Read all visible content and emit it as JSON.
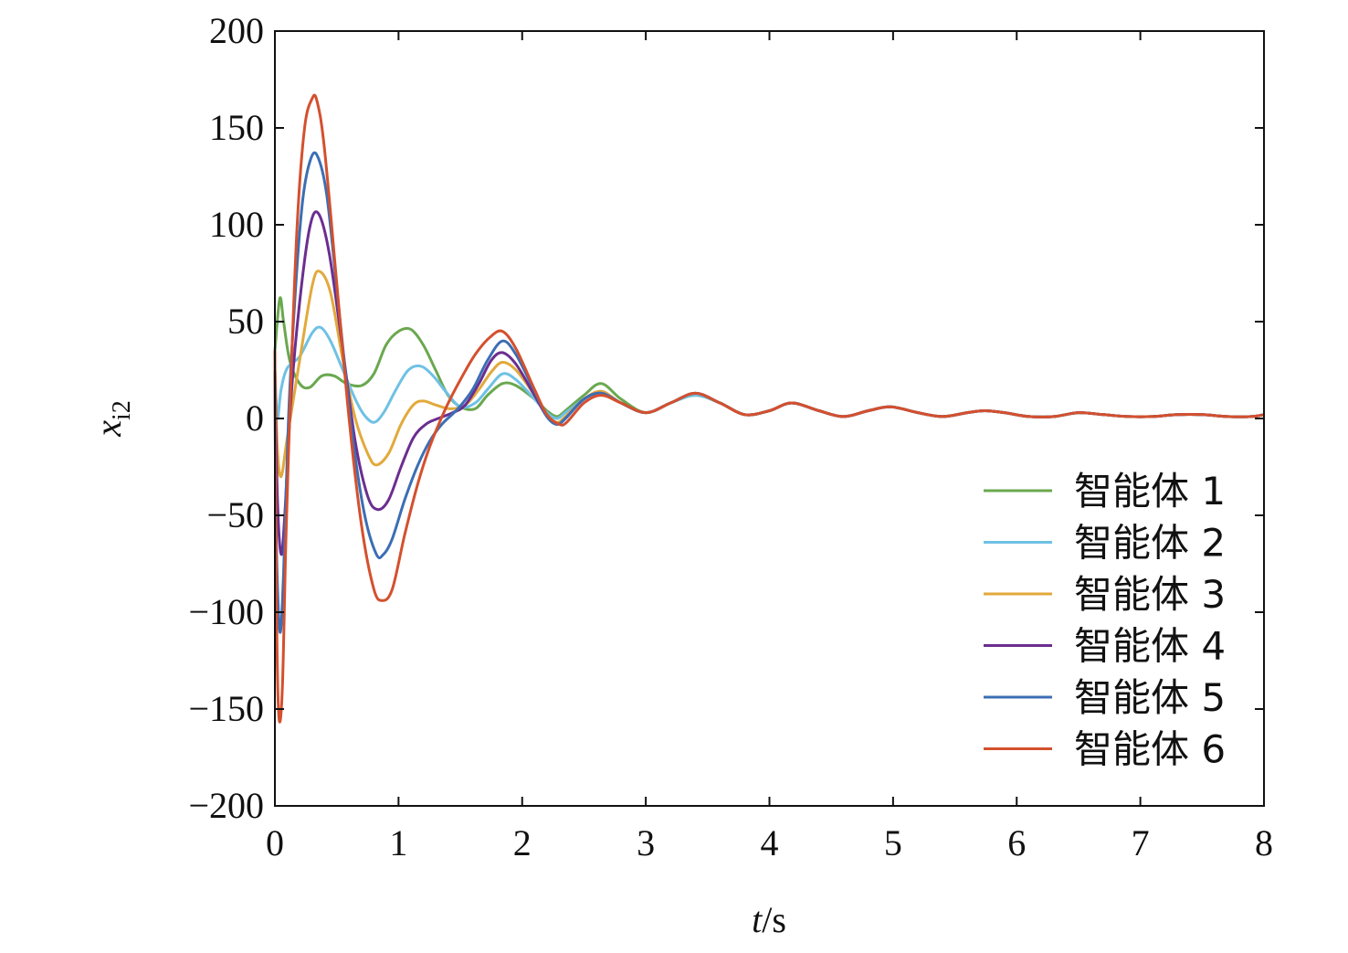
{
  "chart_data": {
    "type": "line",
    "xlabel": {
      "var": "t",
      "unit": "/s"
    },
    "ylabel": {
      "var": "x",
      "sub": "i2"
    },
    "xlim": [
      0,
      8
    ],
    "ylim": [
      -200,
      200
    ],
    "xticks": [
      0,
      1,
      2,
      3,
      4,
      5,
      6,
      7,
      8
    ],
    "yticks": [
      200,
      150,
      100,
      50,
      0,
      -50,
      -100,
      -150,
      -200
    ],
    "xtick_labels": [
      "0",
      "1",
      "2",
      "3",
      "4",
      "5",
      "6",
      "7",
      "8"
    ],
    "ytick_labels": [
      "200",
      "150",
      "100",
      "50",
      "0",
      "−50",
      "−100",
      "−150",
      "−200"
    ],
    "grid": false,
    "legend_position": "lower-right",
    "series": [
      {
        "name": "智能体 1",
        "color": "#6aa84f",
        "x": [
          0,
          0.04,
          0.07,
          0.12,
          0.2,
          0.28,
          0.38,
          0.48,
          0.58,
          0.7,
          0.8,
          0.9,
          1.0,
          1.1,
          1.2,
          1.3,
          1.4,
          1.5,
          1.62,
          1.72,
          1.84,
          1.95,
          2.1,
          2.2,
          2.28,
          2.35,
          2.5,
          2.64,
          2.8,
          3.0,
          3.2,
          3.4,
          3.6,
          3.8,
          4.0,
          4.18,
          4.4,
          4.6,
          4.8,
          4.98,
          5.2,
          5.4,
          5.6,
          5.74,
          5.9,
          6.1,
          6.3,
          6.5,
          6.7,
          6.9,
          7.1,
          7.3,
          7.5,
          7.7,
          7.9,
          8.0
        ],
        "y": [
          35,
          62,
          50,
          30,
          18,
          16,
          22,
          22,
          18,
          17,
          23,
          38,
          45,
          46,
          38,
          25,
          12,
          6,
          5,
          12,
          18,
          17,
          10,
          4,
          1,
          4,
          12,
          18,
          10,
          3,
          8,
          12,
          8,
          2,
          4,
          8,
          4,
          1,
          4,
          6,
          3,
          1,
          3,
          4,
          3,
          1,
          1,
          3,
          2,
          1,
          1,
          2,
          2,
          1,
          1,
          2
        ]
      },
      {
        "name": "智能体 2",
        "color": "#6ec1e4",
        "x": [
          0,
          0.02,
          0.05,
          0.1,
          0.2,
          0.3,
          0.37,
          0.45,
          0.55,
          0.65,
          0.72,
          0.8,
          0.88,
          0.98,
          1.08,
          1.18,
          1.28,
          1.38,
          1.5,
          1.62,
          1.72,
          1.84,
          1.95,
          2.1,
          2.2,
          2.28,
          2.35,
          2.5,
          2.64,
          2.8,
          3.0,
          3.2,
          3.4,
          3.6,
          3.8,
          4.0,
          4.18,
          4.4,
          4.6,
          4.8,
          4.98,
          5.2,
          5.4,
          5.6,
          5.74,
          5.9,
          6.1,
          6.3,
          6.5,
          6.7,
          6.9,
          7.1,
          7.3,
          7.5,
          7.7,
          7.9,
          8.0
        ],
        "y": [
          25,
          0,
          15,
          26,
          32,
          44,
          47,
          40,
          25,
          10,
          2,
          -2,
          3,
          15,
          25,
          27,
          22,
          14,
          6,
          8,
          15,
          23,
          20,
          10,
          3,
          0,
          3,
          10,
          14,
          8,
          3,
          8,
          12,
          8,
          2,
          4,
          8,
          4,
          1,
          4,
          6,
          3,
          1,
          3,
          4,
          3,
          1,
          1,
          3,
          2,
          1,
          1,
          2,
          2,
          1,
          1,
          2
        ]
      },
      {
        "name": "智能体 3",
        "color": "#e2a93b",
        "x": [
          0,
          0.02,
          0.05,
          0.1,
          0.2,
          0.3,
          0.36,
          0.45,
          0.55,
          0.65,
          0.75,
          0.82,
          0.92,
          1.02,
          1.12,
          1.2,
          1.3,
          1.42,
          1.54,
          1.65,
          1.75,
          1.84,
          1.95,
          2.1,
          2.2,
          2.28,
          2.35,
          2.5,
          2.64,
          2.8,
          3.0,
          3.2,
          3.4,
          3.6,
          3.8,
          4.0,
          4.18,
          4.4,
          4.6,
          4.8,
          4.98,
          5.2,
          5.4,
          5.6,
          5.74,
          5.9,
          6.1,
          6.3,
          6.5,
          6.7,
          6.9,
          7.1,
          7.3,
          7.5,
          7.7,
          7.9,
          8.0
        ],
        "y": [
          25,
          -15,
          -30,
          -10,
          30,
          68,
          76,
          65,
          30,
          0,
          -18,
          -24,
          -18,
          -3,
          7,
          9,
          7,
          5,
          7,
          15,
          24,
          29,
          25,
          12,
          2,
          -2,
          1,
          10,
          14,
          8,
          3,
          8,
          13,
          8,
          2,
          4,
          8,
          4,
          1,
          4,
          6,
          3,
          1,
          3,
          4,
          3,
          1,
          1,
          3,
          2,
          1,
          1,
          2,
          2,
          1,
          1,
          2
        ]
      },
      {
        "name": "智能体 4",
        "color": "#6b2e8f",
        "x": [
          0,
          0.02,
          0.05,
          0.08,
          0.13,
          0.2,
          0.28,
          0.35,
          0.44,
          0.55,
          0.65,
          0.75,
          0.83,
          0.92,
          1.02,
          1.12,
          1.22,
          1.32,
          1.44,
          1.54,
          1.65,
          1.75,
          1.84,
          1.95,
          2.1,
          2.2,
          2.28,
          2.35,
          2.5,
          2.64,
          2.8,
          3.0,
          3.2,
          3.4,
          3.6,
          3.8,
          4.0,
          4.18,
          4.4,
          4.6,
          4.8,
          4.98,
          5.2,
          5.4,
          5.6,
          5.74,
          5.9,
          6.1,
          6.3,
          6.5,
          6.7,
          6.9,
          7.1,
          7.3,
          7.5,
          7.7,
          7.9,
          8.0
        ],
        "y": [
          25,
          -40,
          -70,
          -50,
          10,
          60,
          98,
          106,
          85,
          35,
          -12,
          -40,
          -47,
          -42,
          -25,
          -10,
          -3,
          0,
          3,
          7,
          18,
          30,
          34,
          28,
          12,
          1,
          -3,
          0,
          10,
          13,
          8,
          3,
          8,
          13,
          8,
          2,
          4,
          8,
          4,
          1,
          4,
          6,
          3,
          1,
          3,
          4,
          3,
          1,
          1,
          3,
          2,
          1,
          1,
          2,
          2,
          1,
          1,
          2
        ]
      },
      {
        "name": "智能体 5",
        "color": "#3c6eb4",
        "x": [
          0,
          0.01,
          0.04,
          0.07,
          0.11,
          0.16,
          0.22,
          0.28,
          0.34,
          0.42,
          0.52,
          0.62,
          0.72,
          0.82,
          0.88,
          0.95,
          1.05,
          1.15,
          1.25,
          1.35,
          1.48,
          1.6,
          1.72,
          1.84,
          1.95,
          2.1,
          2.2,
          2.28,
          2.35,
          2.5,
          2.64,
          2.8,
          3.0,
          3.2,
          3.4,
          3.6,
          3.8,
          4.0,
          4.18,
          4.4,
          4.6,
          4.8,
          4.98,
          5.2,
          5.4,
          5.6,
          5.74,
          5.9,
          6.1,
          6.3,
          6.5,
          6.7,
          6.9,
          7.1,
          7.3,
          7.5,
          7.7,
          7.9,
          8.0
        ],
        "y": [
          25,
          -60,
          -110,
          -80,
          0,
          60,
          110,
          132,
          136,
          115,
          55,
          -5,
          -48,
          -70,
          -70,
          -62,
          -42,
          -25,
          -12,
          -3,
          5,
          15,
          30,
          40,
          33,
          14,
          1,
          -3,
          0,
          10,
          13,
          8,
          3,
          8,
          13,
          8,
          2,
          4,
          8,
          4,
          1,
          4,
          6,
          3,
          1,
          3,
          4,
          3,
          1,
          1,
          3,
          2,
          1,
          1,
          2,
          2,
          1,
          1,
          2
        ]
      },
      {
        "name": "智能体 6",
        "color": "#d4502e",
        "x": [
          0,
          0.01,
          0.03,
          0.06,
          0.09,
          0.13,
          0.18,
          0.24,
          0.3,
          0.34,
          0.4,
          0.5,
          0.6,
          0.7,
          0.8,
          0.87,
          0.95,
          1.05,
          1.15,
          1.25,
          1.38,
          1.5,
          1.62,
          1.74,
          1.84,
          1.95,
          2.1,
          2.2,
          2.3,
          2.36,
          2.5,
          2.64,
          2.8,
          3.0,
          3.2,
          3.4,
          3.6,
          3.8,
          4.0,
          4.18,
          4.4,
          4.6,
          4.8,
          4.98,
          5.2,
          5.4,
          5.6,
          5.74,
          5.9,
          6.1,
          6.3,
          6.5,
          6.7,
          6.9,
          7.1,
          7.3,
          7.5,
          7.7,
          7.9,
          8.0
        ],
        "y": [
          35,
          -80,
          -152,
          -140,
          -60,
          20,
          100,
          150,
          165,
          164,
          140,
          70,
          0,
          -55,
          -88,
          -94,
          -88,
          -60,
          -35,
          -15,
          5,
          20,
          33,
          42,
          45,
          36,
          15,
          2,
          -3,
          -2,
          8,
          12,
          8,
          3,
          8,
          13,
          8,
          2,
          4,
          8,
          4,
          1,
          4,
          6,
          3,
          1,
          3,
          4,
          3,
          1,
          1,
          3,
          2,
          1,
          1,
          2,
          2,
          1,
          1,
          2
        ]
      }
    ]
  }
}
